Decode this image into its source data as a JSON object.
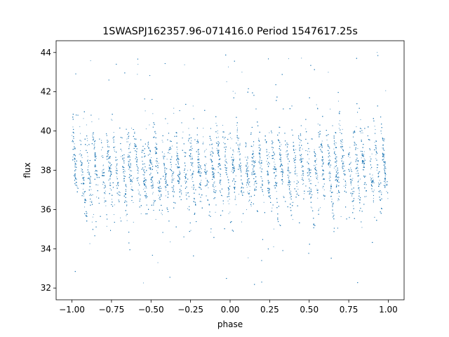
{
  "chart_data": {
    "type": "scatter",
    "title": "1SWASPJ162357.96-071416.0 Period 1547617.25s",
    "xlabel": "phase",
    "ylabel": "flux",
    "xlim": [
      -1.1,
      1.1
    ],
    "ylim": [
      31.4,
      44.6
    ],
    "grid": false,
    "legend": "none",
    "point_color": "#1f77b4",
    "xticks": [
      -1.0,
      -0.75,
      -0.5,
      -0.25,
      0.0,
      0.25,
      0.5,
      0.75,
      1.0
    ],
    "xtick_labels": [
      "−1.00",
      "−0.75",
      "−0.50",
      "−0.25",
      "0.00",
      "0.25",
      "0.50",
      "0.75",
      "1.00"
    ],
    "yticks": [
      32,
      34,
      36,
      38,
      40,
      42,
      44
    ],
    "ytick_labels": [
      "32",
      "34",
      "36",
      "38",
      "40",
      "42",
      "44"
    ],
    "series": [
      {
        "x_range": [
          -1.0,
          1.0
        ],
        "y_center": 38.0,
        "y_core_spread": 1.1,
        "y_outlier_range": [
          32.0,
          44.2
        ],
        "streak_count": 46,
        "streak_tilt": -4.5,
        "point_count": 9000
      }
    ]
  }
}
